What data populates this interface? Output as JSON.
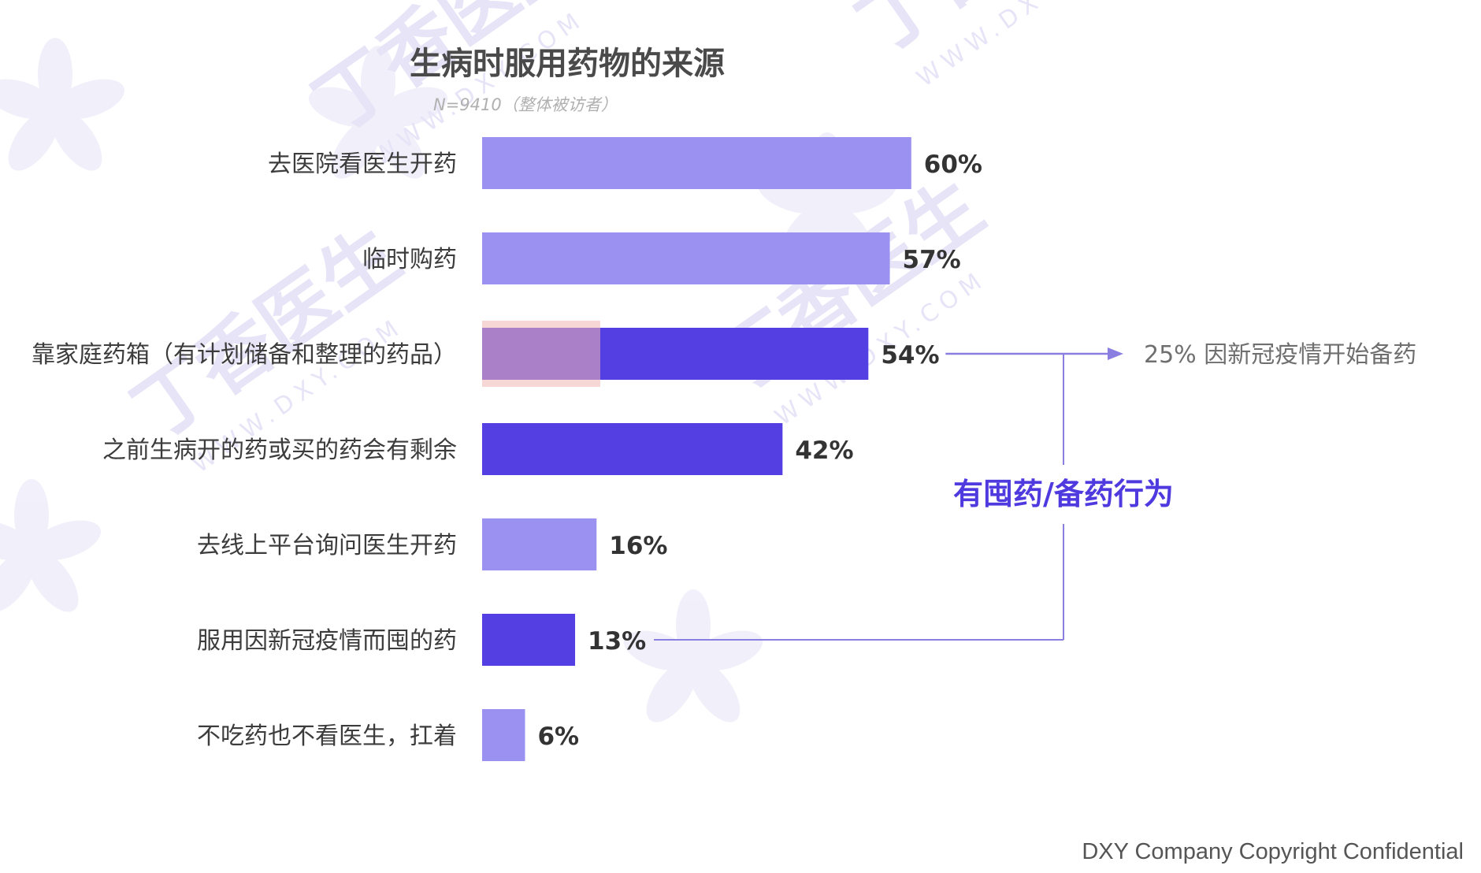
{
  "colors": {
    "light_bar": "#9b91f0",
    "dark_bar": "#5440e2",
    "highlight": "#f0b4b4",
    "callout_line": "#8a7fe0",
    "callout_text": "#6f6f6f",
    "group_label": "#4f3adf",
    "title": "#4a4a4a",
    "category_text": "#3c3c3c",
    "value_text": "#333333",
    "watermark": "#e7e4f7"
  },
  "chart_data": {
    "type": "bar",
    "orientation": "horizontal",
    "title": "生病时服用药物的来源",
    "subtitle": "N=9410（整体被访者）",
    "categories": [
      "去医院看医生开药",
      "临时购药",
      "靠家庭药箱（有计划储备和整理的药品）",
      "之前生病开的药或买的药会有剩余",
      "去线上平台询问医生开药",
      "服用因新冠疫情而囤的药",
      "不吃药也不看医生，扛着"
    ],
    "values": [
      60,
      57,
      54,
      42,
      16,
      13,
      6
    ],
    "value_labels": [
      "60%",
      "57%",
      "54%",
      "42%",
      "16%",
      "13%",
      "6%"
    ],
    "highlighted": [
      false,
      false,
      true,
      true,
      false,
      true,
      false
    ],
    "unit": "%",
    "xlim": [
      0,
      100
    ],
    "grid": false,
    "legend": "none",
    "sub_segment": {
      "category_index": 2,
      "value": 25,
      "label": "25% 因新冠疫情开始备药"
    },
    "group_annotation": {
      "label": "有囤药/备药行为",
      "category_indices": [
        2,
        3,
        5
      ]
    }
  },
  "watermark": {
    "brand": "丁香医生",
    "url": "WWW.DXY.COM"
  },
  "footer": "DXY Company Copyright Confidential"
}
